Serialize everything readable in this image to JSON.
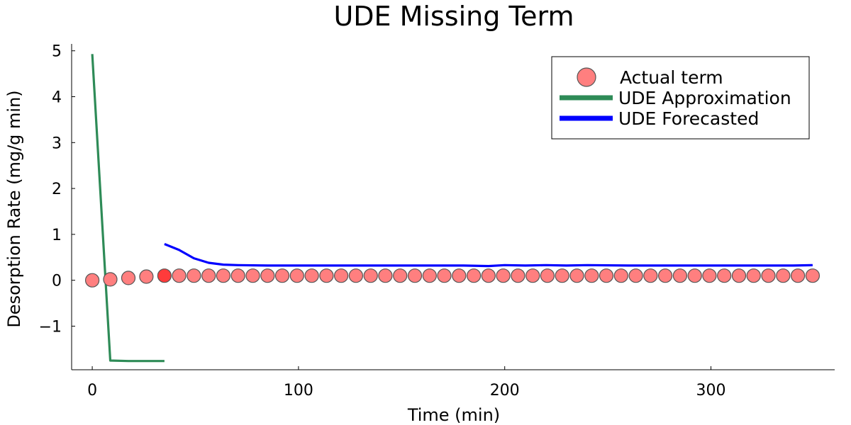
{
  "chart_data": {
    "type": "line",
    "title": "UDE Missing Term",
    "xlabel": "Time (min)",
    "ylabel": "Desorption Rate (mg/g min)",
    "xlim": [
      -10,
      360
    ],
    "ylim": [
      -1.95,
      5.15
    ],
    "xticks": [
      0,
      100,
      200,
      300
    ],
    "xtick_labels": [
      "0",
      "100",
      "200",
      "300"
    ],
    "yticks": [
      -1,
      0,
      1,
      2,
      3,
      4,
      5
    ],
    "ytick_labels": [
      "−1",
      "0",
      "1",
      "2",
      "3",
      "4",
      "5"
    ],
    "grid": false,
    "legend_position": "top-right",
    "series": [
      {
        "name": "Actual term",
        "kind": "scatter",
        "color": "#ff7f7f",
        "x": [
          0,
          8.75,
          17.5,
          26.25,
          35,
          42.14,
          49.29,
          56.43,
          63.57,
          70.71,
          77.86,
          85,
          92.14,
          99.29,
          106.43,
          113.57,
          120.71,
          127.86,
          135,
          142.14,
          149.29,
          156.43,
          163.57,
          170.71,
          177.86,
          185,
          192.14,
          199.29,
          206.43,
          213.57,
          220.71,
          227.86,
          235,
          242.14,
          249.29,
          256.43,
          263.57,
          270.71,
          277.86,
          285,
          292.14,
          299.29,
          306.43,
          313.57,
          320.71,
          327.86,
          335,
          342.14,
          349.29
        ],
        "y": [
          0,
          0.02,
          0.05,
          0.08,
          0.1,
          0.1,
          0.1,
          0.1,
          0.1,
          0.1,
          0.1,
          0.1,
          0.1,
          0.1,
          0.1,
          0.1,
          0.1,
          0.1,
          0.1,
          0.1,
          0.1,
          0.1,
          0.1,
          0.1,
          0.1,
          0.1,
          0.1,
          0.1,
          0.1,
          0.1,
          0.1,
          0.1,
          0.1,
          0.1,
          0.1,
          0.1,
          0.1,
          0.1,
          0.1,
          0.1,
          0.1,
          0.1,
          0.1,
          0.1,
          0.1,
          0.1,
          0.1,
          0.1,
          0.1
        ]
      },
      {
        "name": "UDE Approximation",
        "kind": "line",
        "color": "#2e8b57",
        "x": [
          0,
          8.75,
          17.5,
          26.25,
          35
        ],
        "y": [
          4.93,
          -1.75,
          -1.76,
          -1.76,
          -1.76
        ]
      },
      {
        "name": "UDE Forecasted",
        "kind": "line",
        "color": "#0000ff",
        "x": [
          35,
          42.14,
          49.29,
          56.43,
          63.57,
          70.71,
          85,
          100,
          120,
          140,
          160,
          180,
          192.14,
          200,
          210,
          220,
          230,
          240,
          260,
          280,
          300,
          320,
          340,
          349.29
        ],
        "y": [
          0.79,
          0.66,
          0.48,
          0.38,
          0.34,
          0.33,
          0.32,
          0.32,
          0.32,
          0.32,
          0.32,
          0.32,
          0.31,
          0.33,
          0.32,
          0.33,
          0.32,
          0.33,
          0.32,
          0.32,
          0.32,
          0.32,
          0.32,
          0.33
        ]
      }
    ],
    "highlight_point_color": "#ff3b3b"
  }
}
